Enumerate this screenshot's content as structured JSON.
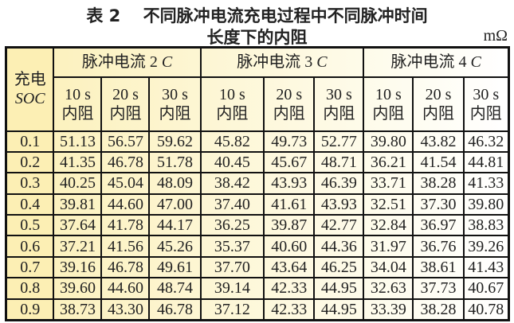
{
  "title_line1": "表 2　 不同脉冲电流充电过程中不同脉冲时间",
  "title_line2": "长度下的内阻",
  "unit": "mΩ",
  "header": {
    "soc_label_1": "充电",
    "soc_label_2": "SOC",
    "groups": [
      {
        "label": "脉冲电流 2 ",
        "italic": "C"
      },
      {
        "label": "脉冲电流 3 ",
        "italic": "C"
      },
      {
        "label": "脉冲电流 4 ",
        "italic": "C"
      }
    ],
    "sub": [
      {
        "time": "10 s",
        "label": "内阻"
      },
      {
        "time": "20 s",
        "label": "内阻"
      },
      {
        "time": "30 s",
        "label": "内阻"
      }
    ]
  },
  "rows": [
    {
      "soc": "0.1",
      "values": [
        "51.13",
        "56.57",
        "59.62",
        "45.82",
        "49.73",
        "52.77",
        "39.80",
        "43.82",
        "46.32"
      ]
    },
    {
      "soc": "0.2",
      "values": [
        "41.35",
        "46.78",
        "51.78",
        "40.45",
        "45.67",
        "48.71",
        "36.21",
        "41.54",
        "44.81"
      ]
    },
    {
      "soc": "0.3",
      "values": [
        "40.25",
        "45.04",
        "48.09",
        "38.42",
        "43.93",
        "46.39",
        "33.71",
        "38.28",
        "41.33"
      ]
    },
    {
      "soc": "0.4",
      "values": [
        "39.81",
        "44.60",
        "47.00",
        "37.40",
        "41.61",
        "43.93",
        "32.51",
        "37.30",
        "39.80"
      ]
    },
    {
      "soc": "0.5",
      "values": [
        "37.64",
        "41.78",
        "44.17",
        "36.25",
        "39.87",
        "42.77",
        "32.84",
        "36.97",
        "38.83"
      ]
    },
    {
      "soc": "0.6",
      "values": [
        "37.21",
        "41.56",
        "45.26",
        "35.37",
        "40.60",
        "44.36",
        "31.97",
        "36.76",
        "39.26"
      ]
    },
    {
      "soc": "0.7",
      "values": [
        "39.16",
        "46.78",
        "49.61",
        "37.70",
        "43.64",
        "46.25",
        "34.04",
        "38.61",
        "41.43"
      ]
    },
    {
      "soc": "0.8",
      "values": [
        "39.60",
        "44.60",
        "48.74",
        "39.14",
        "42.33",
        "44.95",
        "32.63",
        "37.73",
        "40.67"
      ]
    },
    {
      "soc": "0.9",
      "values": [
        "38.73",
        "43.30",
        "46.78",
        "37.12",
        "42.33",
        "44.95",
        "33.39",
        "38.28",
        "40.78"
      ]
    }
  ]
}
